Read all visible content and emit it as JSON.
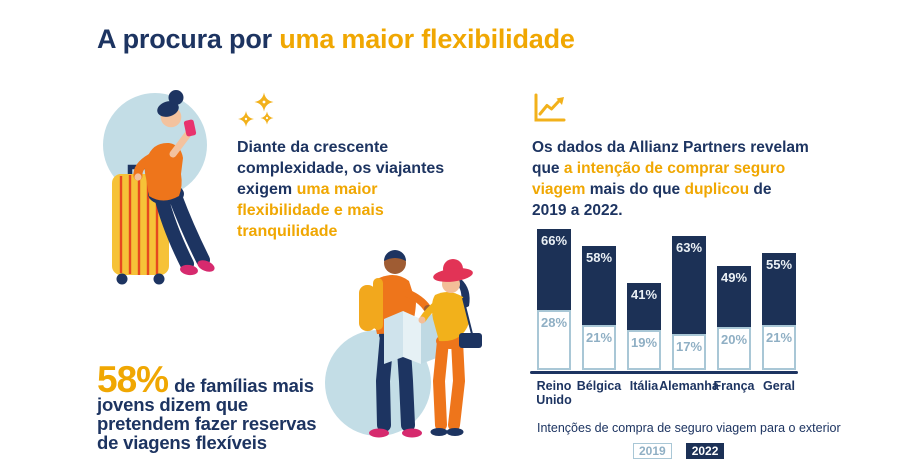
{
  "title": {
    "prefix": "A procura por ",
    "highlight": "uma maior flexibilidade"
  },
  "left_block": {
    "icon": "sparkles-icon",
    "text_navy": "Diante da crescente complexidade, os viajantes exigem ",
    "text_yellow": "uma maior flexibilidade e mais tranquilidade"
  },
  "right_block": {
    "icon": "trend-chart-icon",
    "segments": [
      {
        "text": "Os dados da Allianz Partners revelam que ",
        "color": "navy"
      },
      {
        "text": "a intenção de comprar seguro viagem ",
        "color": "yellow"
      },
      {
        "text": "mais do que ",
        "color": "navy"
      },
      {
        "text": "duplicou ",
        "color": "yellow"
      },
      {
        "text": "de 2019 a 2022.",
        "color": "navy"
      }
    ]
  },
  "stat_block": {
    "value": "58%",
    "text": "de famílias mais jovens dizem que pretendem fazer reservas de viagens flexíveis"
  },
  "chart_data": {
    "type": "bar",
    "subtype": "overlaid-stacked-percent",
    "categories": [
      "Reino Unido",
      "Bélgica",
      "Itália",
      "Alemanha",
      "França",
      "Geral"
    ],
    "series": [
      {
        "name": "2019",
        "values": [
          28,
          21,
          19,
          17,
          20,
          21
        ]
      },
      {
        "name": "2022",
        "values": [
          66,
          58,
          41,
          63,
          49,
          55
        ]
      }
    ],
    "unit": "%",
    "ylim": [
      0,
      66
    ],
    "grid": false,
    "legend": [
      "2019",
      "2022"
    ],
    "legend_position": "bottom",
    "caption": "Intenções de compra de seguro viagem para o exterior"
  },
  "illustrations": {
    "left": "traveler-woman-with-suitcase-and-phone",
    "center": "two-travelers-reading-map"
  },
  "colors": {
    "navy": "#1D3461",
    "bar_navy": "#1C3156",
    "yellow_text": "#F0A702",
    "gold_icon": "#F2B11B",
    "orange": "#EE751B",
    "suitcase_yellow": "#F6C238",
    "stripe_red": "#E6491F",
    "pink": "#D62A6E",
    "hat_pink": "#E23356",
    "light_blue_circle": "#C3DDE6",
    "bar_border_blue": "#A9C7D6",
    "label_2019_blue": "#8FAFC4",
    "background": "#FFFFFF"
  }
}
